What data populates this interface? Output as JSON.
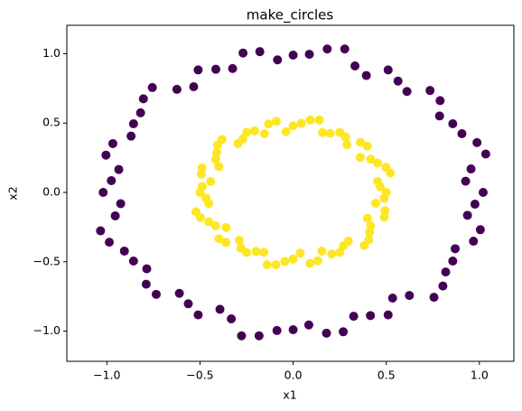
{
  "chart_data": {
    "type": "scatter",
    "title": "make_circles",
    "x_label": "x1",
    "y_label": "x2",
    "xlim": [
      -1.215,
      1.185
    ],
    "ylim": [
      -1.218,
      1.205
    ],
    "xticks": [
      {
        "value": -1.0,
        "label": "−1.0"
      },
      {
        "value": -0.5,
        "label": "−0.5"
      },
      {
        "value": 0.0,
        "label": "0.0"
      },
      {
        "value": 0.5,
        "label": "0.5"
      },
      {
        "value": 1.0,
        "label": "1.0"
      }
    ],
    "yticks": [
      {
        "value": -1.0,
        "label": "−1.0"
      },
      {
        "value": -0.5,
        "label": "−0.5"
      },
      {
        "value": 0.0,
        "label": "0.0"
      },
      {
        "value": 0.5,
        "label": "0.5"
      },
      {
        "value": 1.0,
        "label": "1.0"
      }
    ],
    "grid": false,
    "series": [
      {
        "color": "#440154",
        "x": [
          1.02,
          0.955,
          0.987,
          0.857,
          0.789,
          0.611,
          0.51,
          0.332,
          0.183,
          0.0,
          -0.179,
          -0.325,
          -0.51,
          -0.624,
          -0.804,
          -0.857,
          -0.968,
          -0.936,
          -1.02,
          -0.955,
          -0.987,
          -0.857,
          -0.789,
          -0.611,
          -0.51,
          -0.332,
          -0.183,
          0.0,
          0.179,
          0.325,
          0.51,
          0.624,
          0.804,
          0.857,
          0.968,
          0.936,
          0.926,
          1.034,
          0.906,
          0.786,
          0.735,
          0.563,
          0.393,
          0.277,
          0.087,
          -0.084,
          -0.269,
          -0.415,
          -0.534,
          -0.756,
          -0.819,
          -0.87,
          -1.005,
          -0.976,
          -0.926,
          -1.034,
          -0.906,
          -0.786,
          -0.735,
          -0.563,
          -0.393,
          -0.277,
          -0.087,
          0.084,
          0.269,
          0.415,
          0.534,
          0.756,
          0.819,
          0.87,
          1.005,
          0.976
        ],
        "y": [
          0.0,
          0.169,
          0.359,
          0.495,
          0.662,
          0.728,
          0.883,
          0.912,
          1.034,
          0.99,
          1.015,
          0.893,
          0.883,
          0.743,
          0.675,
          0.495,
          0.352,
          0.165,
          0.0,
          -0.169,
          -0.359,
          -0.495,
          -0.662,
          -0.728,
          -0.883,
          -0.912,
          -1.034,
          -0.99,
          -1.015,
          -0.893,
          -0.883,
          -0.743,
          -0.675,
          -0.495,
          -0.352,
          -0.165,
          0.081,
          0.277,
          0.423,
          0.551,
          0.735,
          0.803,
          0.843,
          1.034,
          0.996,
          0.956,
          1.005,
          0.888,
          0.762,
          0.756,
          0.574,
          0.406,
          0.269,
          0.085,
          -0.081,
          -0.277,
          -0.423,
          -0.551,
          -0.735,
          -0.803,
          -0.843,
          -1.034,
          -0.996,
          -0.956,
          -1.005,
          -0.888,
          -0.762,
          -0.756,
          -0.574,
          -0.406,
          -0.269,
          -0.085
        ]
      },
      {
        "color": "#fde725",
        "x": [
          0.5,
          0.453,
          0.498,
          0.416,
          0.398,
          0.289,
          0.25,
          0.157,
          0.092,
          0.0,
          -0.09,
          -0.154,
          -0.25,
          -0.296,
          -0.406,
          -0.416,
          -0.489,
          -0.443,
          -0.5,
          -0.453,
          -0.498,
          -0.416,
          -0.398,
          -0.289,
          -0.25,
          -0.157,
          -0.092,
          0.0,
          0.09,
          0.154,
          0.25,
          0.296,
          0.406,
          0.416,
          0.489,
          0.443,
          0.468,
          0.522,
          0.453,
          0.36,
          0.361,
          0.281,
          0.199,
          0.14,
          0.044,
          -0.038,
          -0.132,
          -0.207,
          -0.27,
          -0.382,
          -0.41,
          -0.399,
          -0.493,
          -0.488,
          -0.468,
          -0.522,
          -0.453,
          -0.36,
          -0.361,
          -0.281,
          -0.199,
          -0.14,
          -0.044,
          0.038,
          0.132,
          0.207,
          0.27,
          0.382,
          0.41,
          0.399,
          0.493,
          0.488
        ],
        "y": [
          0.0,
          0.08,
          0.181,
          0.24,
          0.334,
          0.345,
          0.433,
          0.432,
          0.522,
          0.48,
          0.512,
          0.423,
          0.433,
          0.352,
          0.341,
          0.24,
          0.178,
          0.078,
          0.0,
          -0.08,
          -0.181,
          -0.24,
          -0.334,
          -0.345,
          -0.433,
          -0.432,
          -0.522,
          -0.48,
          -0.512,
          -0.423,
          -0.433,
          -0.352,
          -0.341,
          -0.24,
          -0.178,
          -0.078,
          0.041,
          0.14,
          0.212,
          0.253,
          0.361,
          0.401,
          0.426,
          0.522,
          0.498,
          0.438,
          0.493,
          0.444,
          0.385,
          0.382,
          0.287,
          0.186,
          0.132,
          0.043,
          -0.041,
          -0.14,
          -0.212,
          -0.253,
          -0.361,
          -0.401,
          -0.426,
          -0.522,
          -0.498,
          -0.438,
          -0.493,
          -0.444,
          -0.385,
          -0.382,
          -0.287,
          -0.186,
          -0.132,
          -0.043
        ]
      }
    ]
  }
}
